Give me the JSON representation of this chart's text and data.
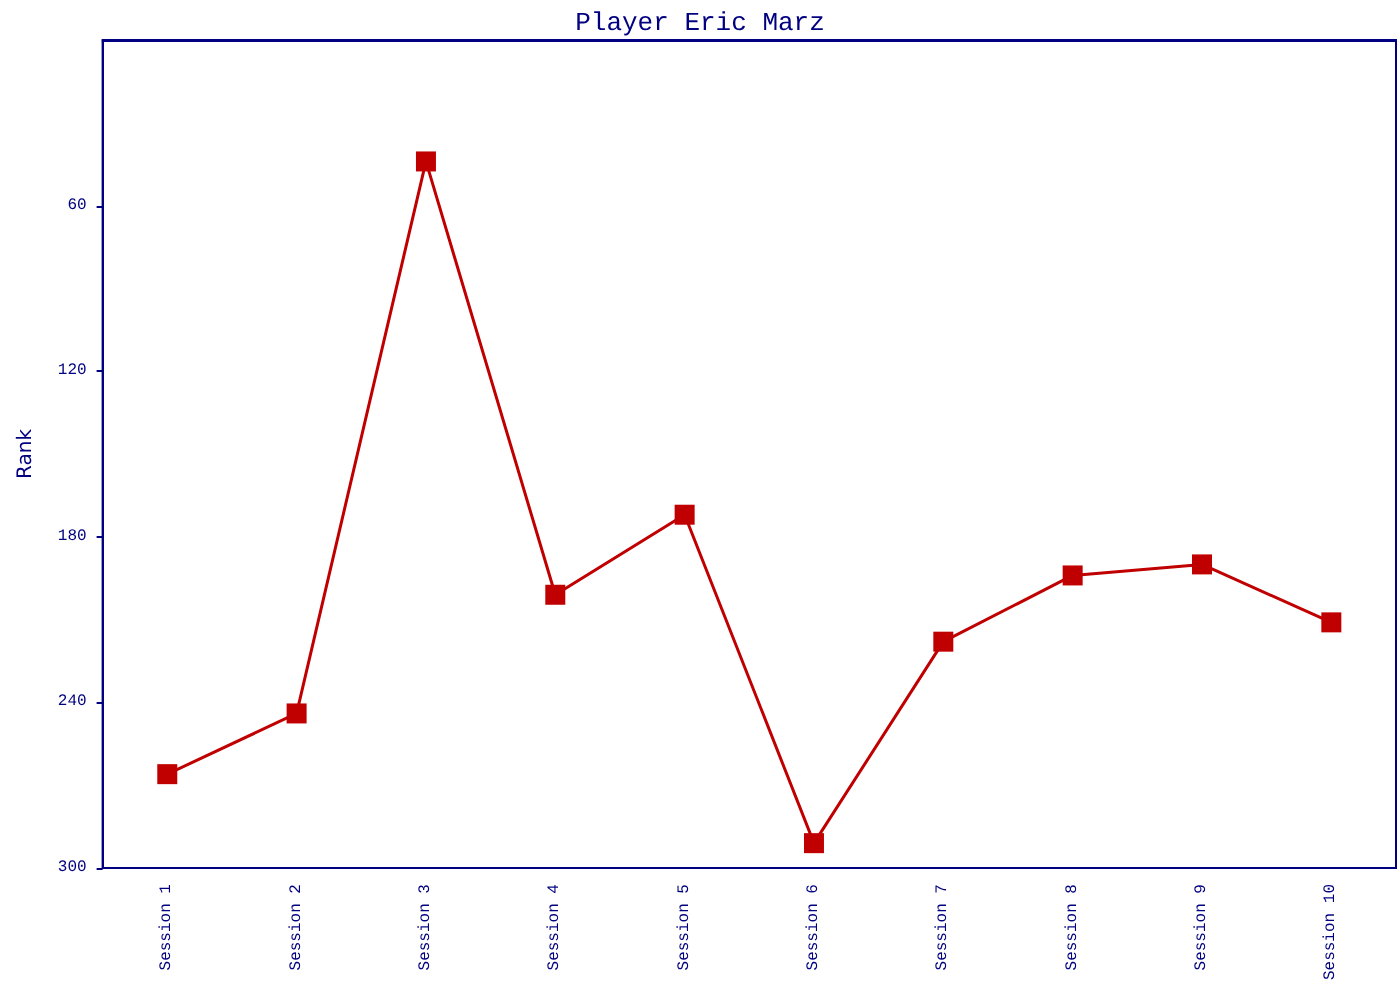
{
  "chart_data": {
    "type": "line",
    "title": "Player Eric Marz",
    "ylabel": "Rank",
    "categories": [
      "Session 1",
      "Session 2",
      "Session 3",
      "Session 4",
      "Session 5",
      "Session 6",
      "Session 7",
      "Session 8",
      "Session 9",
      "Session 10"
    ],
    "series": [
      {
        "color": "#c00000",
        "values": [
          266,
          244,
          44,
          201,
          172,
          291,
          218,
          194,
          190,
          211
        ]
      }
    ],
    "ylim": [
      300,
      0
    ],
    "yticks": [
      60,
      120,
      180,
      240,
      300
    ],
    "grid": false,
    "marker": "square",
    "line_style": "solid"
  }
}
